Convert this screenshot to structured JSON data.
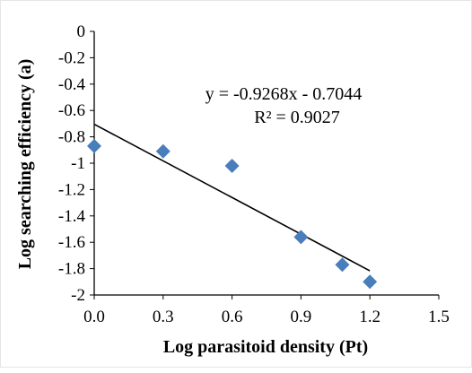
{
  "chart_data": {
    "type": "scatter",
    "title": "",
    "xlabel": "Log parasitoid density (Pt)",
    "ylabel": "Log searching efficiency (a)",
    "xlim": [
      0,
      1.5
    ],
    "ylim": [
      -2,
      0
    ],
    "x_ticks": [
      "0.0",
      "0.3",
      "0.6",
      "0.9",
      "1.2",
      "1.5"
    ],
    "y_ticks": [
      "0",
      "-0.2",
      "-0.4",
      "-0.6",
      "-0.8",
      "-1",
      "-1.2",
      "-1.4",
      "-1.6",
      "-1.8",
      "-2"
    ],
    "points": [
      {
        "x": 0.0,
        "y": -0.87
      },
      {
        "x": 0.3,
        "y": -0.91
      },
      {
        "x": 0.6,
        "y": -1.02
      },
      {
        "x": 0.9,
        "y": -1.56
      },
      {
        "x": 1.08,
        "y": -1.77
      },
      {
        "x": 1.2,
        "y": -1.9
      }
    ],
    "trendline": {
      "slope": -0.9268,
      "intercept": -0.7044,
      "x_range": [
        0.0,
        1.2
      ]
    },
    "equation": "y = -0.9268x - 0.7044",
    "r_squared": "R² = 0.9027",
    "grid": false,
    "marker_color": "#4a7ebb",
    "line_color": "#000000"
  }
}
